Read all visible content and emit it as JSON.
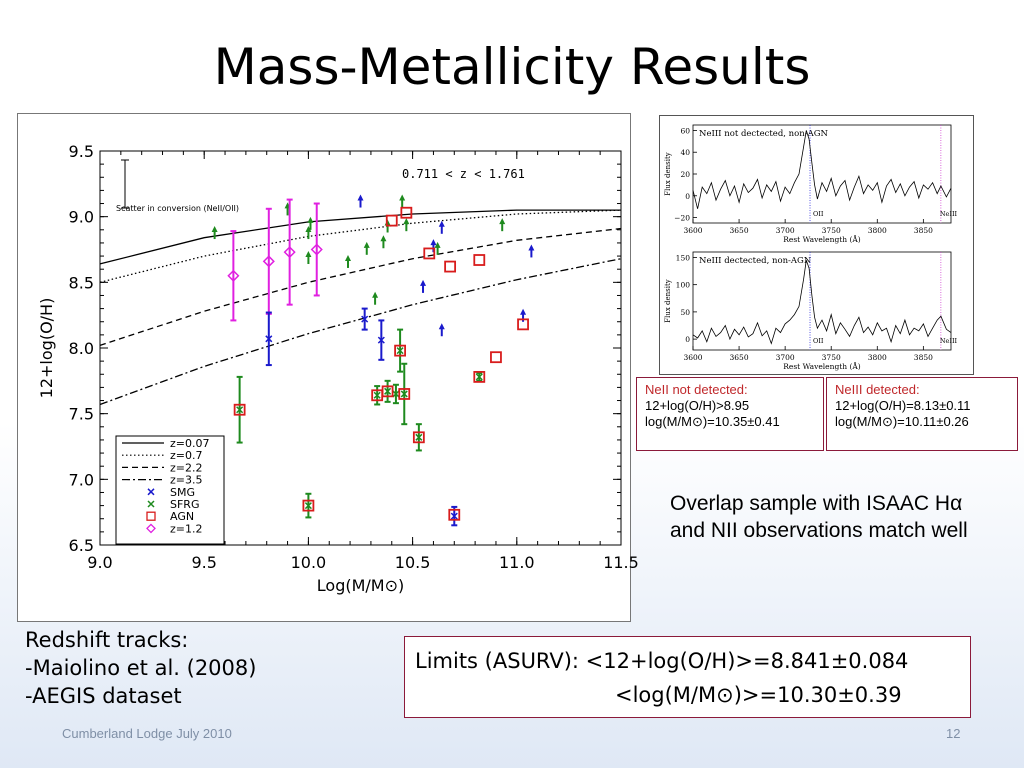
{
  "slide": {
    "title": "Mass-Metallicity Results",
    "footer_left": "Cumberland Lodge July 2010",
    "page_number": "12"
  },
  "boxes": {
    "neii": {
      "heading": "NeII not detected:",
      "line1": "12+log(O/H)>8.95",
      "line2": "log(M/M⊙)=10.35±0.41"
    },
    "neiii": {
      "heading": "NeIII detected:",
      "line1": "12+log(O/H)=8.13±0.11",
      "line2": "log(M/M⊙)=10.11±0.26"
    }
  },
  "overlap_text": "Overlap sample with ISAAC Hα and NII observations match well",
  "tracks": {
    "heading": "Redshift tracks:",
    "items": [
      "-Maiolino et al. (2008)",
      "-AEGIS dataset"
    ]
  },
  "limits": {
    "line1": "Limits (ASURV):  <12+log(O/H)>=8.841±0.084",
    "line2": "<log(M/M⊙)>=10.30±0.39"
  },
  "colors": {
    "smg": "#1a1acc",
    "sfrg": "#1e8a1e",
    "agn": "#d81c1c",
    "z12": "#e020e0",
    "limit_arrow_blue": "#1a1acc",
    "limit_arrow_green": "#1e8a1e"
  },
  "chart_data": [
    {
      "type": "scatter",
      "annotation": "0.711 < z < 1.761",
      "scatter_label": "Scatter in conversion (NeII/OII)",
      "xlabel": "Log(M/M⊙)",
      "ylabel": "12+log(O/H)",
      "xlim": [
        9.0,
        11.5
      ],
      "ylim": [
        6.5,
        9.5
      ],
      "xticks": [
        "9.0",
        "9.5",
        "10.0",
        "10.5",
        "11.0",
        "11.5"
      ],
      "yticks": [
        "6.5",
        "7.0",
        "7.5",
        "8.0",
        "8.5",
        "9.0",
        "9.5"
      ],
      "legend": {
        "placement": "bottom-left",
        "entries": [
          "z=0.07",
          "z=0.7",
          "z=2.2",
          "z=3.5",
          "SMG",
          "SFRG",
          "AGN",
          "z=1.2"
        ]
      },
      "tracks": [
        {
          "name": "z=0.07",
          "style": "solid",
          "x": [
            9.0,
            9.5,
            10.0,
            10.5,
            11.0,
            11.5
          ],
          "y": [
            8.64,
            8.84,
            8.96,
            9.02,
            9.05,
            9.05
          ]
        },
        {
          "name": "z=0.7",
          "style": "dotted",
          "x": [
            9.0,
            9.5,
            10.0,
            10.5,
            11.0,
            11.5
          ],
          "y": [
            8.5,
            8.7,
            8.85,
            8.95,
            9.02,
            9.05
          ]
        },
        {
          "name": "z=2.2",
          "style": "dashed",
          "x": [
            9.0,
            9.5,
            10.0,
            10.5,
            11.0,
            11.5
          ],
          "y": [
            8.02,
            8.28,
            8.5,
            8.68,
            8.82,
            8.91
          ]
        },
        {
          "name": "z=3.5",
          "style": "dashdot",
          "x": [
            9.0,
            9.5,
            10.0,
            10.5,
            11.0,
            11.5
          ],
          "y": [
            7.57,
            7.86,
            8.11,
            8.33,
            8.52,
            8.68
          ]
        }
      ],
      "smg": [
        {
          "x": 9.81,
          "y": 8.07,
          "err": 0.2
        },
        {
          "x": 10.27,
          "y": 8.22,
          "err": 0.08
        },
        {
          "x": 10.35,
          "y": 8.06,
          "err": 0.15
        },
        {
          "x": 10.7,
          "y": 6.72,
          "err": 0.07
        }
      ],
      "sfrg": [
        {
          "x": 9.67,
          "y": 7.53,
          "err": 0.25
        },
        {
          "x": 10.0,
          "y": 6.8,
          "err": 0.09
        },
        {
          "x": 10.33,
          "y": 7.64,
          "err": 0.07
        },
        {
          "x": 10.38,
          "y": 7.67,
          "err": 0.08
        },
        {
          "x": 10.42,
          "y": 7.65,
          "err": 0.07
        },
        {
          "x": 10.44,
          "y": 7.98,
          "err": 0.16
        },
        {
          "x": 10.46,
          "y": 7.65,
          "err": 0.23
        },
        {
          "x": 10.53,
          "y": 7.32,
          "err": 0.1
        },
        {
          "x": 10.82,
          "y": 7.78,
          "err": 0.03
        }
      ],
      "agn": [
        {
          "x": 9.67,
          "y": 7.53
        },
        {
          "x": 10.0,
          "y": 6.8
        },
        {
          "x": 10.33,
          "y": 7.64
        },
        {
          "x": 10.38,
          "y": 7.67
        },
        {
          "x": 10.4,
          "y": 8.97
        },
        {
          "x": 10.44,
          "y": 7.98
        },
        {
          "x": 10.46,
          "y": 7.65
        },
        {
          "x": 10.47,
          "y": 9.03
        },
        {
          "x": 10.53,
          "y": 7.32
        },
        {
          "x": 10.58,
          "y": 8.72
        },
        {
          "x": 10.68,
          "y": 8.62
        },
        {
          "x": 10.7,
          "y": 6.73
        },
        {
          "x": 10.82,
          "y": 7.78
        },
        {
          "x": 10.82,
          "y": 8.67
        },
        {
          "x": 10.9,
          "y": 7.93
        },
        {
          "x": 11.03,
          "y": 8.18
        }
      ],
      "z12": [
        {
          "x": 9.64,
          "y": 8.55,
          "err": 0.34
        },
        {
          "x": 9.81,
          "y": 8.66,
          "err": 0.4
        },
        {
          "x": 9.91,
          "y": 8.73,
          "err": 0.4
        },
        {
          "x": 10.04,
          "y": 8.75,
          "err": 0.35
        }
      ],
      "limits_blue": [
        {
          "x": 10.25,
          "y": 9.1
        },
        {
          "x": 10.6,
          "y": 8.76
        },
        {
          "x": 10.64,
          "y": 8.9
        },
        {
          "x": 10.55,
          "y": 8.45
        },
        {
          "x": 10.64,
          "y": 8.12
        },
        {
          "x": 11.03,
          "y": 8.23
        },
        {
          "x": 11.07,
          "y": 8.72
        }
      ],
      "limits_green": [
        {
          "x": 9.55,
          "y": 8.86
        },
        {
          "x": 9.9,
          "y": 9.04
        },
        {
          "x": 10.0,
          "y": 8.86
        },
        {
          "x": 10.0,
          "y": 8.67
        },
        {
          "x": 10.01,
          "y": 8.93
        },
        {
          "x": 10.19,
          "y": 8.64
        },
        {
          "x": 10.28,
          "y": 8.74
        },
        {
          "x": 10.36,
          "y": 8.79
        },
        {
          "x": 10.38,
          "y": 8.91
        },
        {
          "x": 10.45,
          "y": 9.1
        },
        {
          "x": 10.47,
          "y": 8.92
        },
        {
          "x": 10.62,
          "y": 8.74
        },
        {
          "x": 10.32,
          "y": 8.36
        },
        {
          "x": 10.93,
          "y": 8.92
        }
      ]
    },
    {
      "type": "line",
      "annotation": "NeIII not dectected, non-AGN",
      "xlabel": "Rest Wavelength (Å)",
      "ylabel": "Flux density",
      "xlim": [
        3600,
        3880
      ],
      "ylim": [
        -25,
        65
      ],
      "xticks": [
        "3600",
        "3650",
        "3700",
        "3750",
        "3800",
        "3850"
      ],
      "yticks": [
        "−20",
        "0",
        "20",
        "40",
        "60"
      ],
      "line_labels": [
        "OII",
        "NeIII"
      ],
      "x": [
        3600,
        3605,
        3610,
        3615,
        3620,
        3625,
        3630,
        3635,
        3640,
        3645,
        3650,
        3655,
        3660,
        3665,
        3670,
        3675,
        3680,
        3685,
        3690,
        3695,
        3700,
        3705,
        3710,
        3715,
        3720,
        3723,
        3726,
        3729,
        3732,
        3735,
        3740,
        3745,
        3750,
        3755,
        3760,
        3765,
        3770,
        3775,
        3780,
        3785,
        3790,
        3795,
        3800,
        3805,
        3810,
        3815,
        3820,
        3825,
        3830,
        3835,
        3840,
        3845,
        3850,
        3855,
        3860,
        3865,
        3869,
        3875,
        3880
      ],
      "y": [
        5,
        -12,
        8,
        2,
        12,
        -4,
        6,
        14,
        0,
        9,
        -6,
        11,
        3,
        7,
        15,
        -2,
        10,
        4,
        13,
        -5,
        8,
        2,
        12,
        20,
        45,
        60,
        52,
        30,
        10,
        -3,
        12,
        4,
        16,
        0,
        9,
        14,
        -4,
        8,
        18,
        2,
        10,
        5,
        12,
        -6,
        9,
        15,
        3,
        11,
        0,
        8,
        13,
        -2,
        10,
        6,
        12,
        2,
        9,
        -1,
        7
      ]
    },
    {
      "type": "line",
      "annotation": "NeIII dectected, non-AGN",
      "xlabel": "Rest Wavelength (Å)",
      "ylabel": "Flux density",
      "xlim": [
        3600,
        3880
      ],
      "ylim": [
        -20,
        160
      ],
      "xticks": [
        "3600",
        "3650",
        "3700",
        "3750",
        "3800",
        "3850"
      ],
      "yticks": [
        "0",
        "50",
        "100",
        "150"
      ],
      "line_labels": [
        "OII",
        "NeIII"
      ],
      "x": [
        3600,
        3605,
        3610,
        3615,
        3620,
        3625,
        3630,
        3635,
        3640,
        3645,
        3650,
        3655,
        3660,
        3665,
        3670,
        3675,
        3680,
        3685,
        3690,
        3695,
        3700,
        3705,
        3710,
        3715,
        3720,
        3723,
        3726,
        3729,
        3732,
        3735,
        3740,
        3745,
        3750,
        3755,
        3760,
        3765,
        3770,
        3775,
        3780,
        3785,
        3790,
        3795,
        3800,
        3805,
        3810,
        3815,
        3820,
        3825,
        3830,
        3835,
        3840,
        3845,
        3850,
        3855,
        3860,
        3865,
        3869,
        3875,
        3880
      ],
      "y": [
        8,
        2,
        15,
        -5,
        20,
        5,
        12,
        25,
        0,
        18,
        8,
        22,
        4,
        10,
        30,
        6,
        15,
        -8,
        20,
        12,
        28,
        35,
        45,
        60,
        110,
        145,
        130,
        80,
        40,
        20,
        35,
        15,
        45,
        10,
        30,
        18,
        5,
        25,
        40,
        12,
        22,
        8,
        30,
        15,
        20,
        -5,
        25,
        10,
        35,
        8,
        20,
        15,
        28,
        5,
        20,
        35,
        42,
        18,
        12
      ]
    }
  ]
}
